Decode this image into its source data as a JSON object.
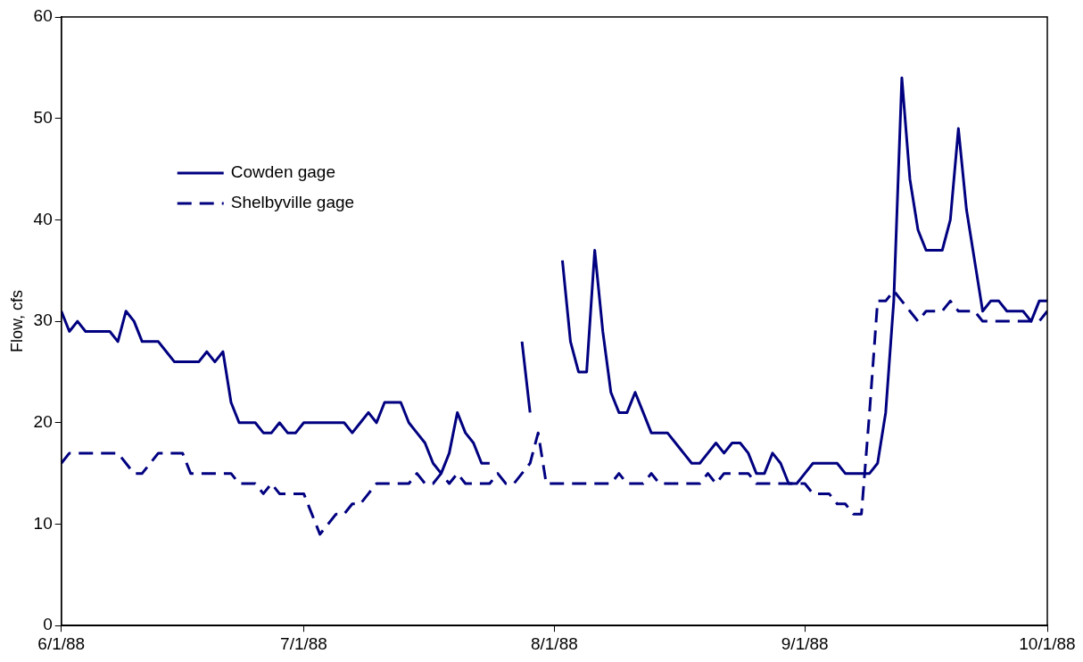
{
  "chart_data": {
    "type": "line",
    "ylabel": "Flow, cfs",
    "x": [
      "1988-06-01",
      "1988-06-02",
      "1988-06-03",
      "1988-06-04",
      "1988-06-05",
      "1988-06-06",
      "1988-06-07",
      "1988-06-08",
      "1988-06-09",
      "1988-06-10",
      "1988-06-11",
      "1988-06-12",
      "1988-06-13",
      "1988-06-14",
      "1988-06-15",
      "1988-06-16",
      "1988-06-17",
      "1988-06-18",
      "1988-06-19",
      "1988-06-20",
      "1988-06-21",
      "1988-06-22",
      "1988-06-23",
      "1988-06-24",
      "1988-06-25",
      "1988-06-26",
      "1988-06-27",
      "1988-06-28",
      "1988-06-29",
      "1988-06-30",
      "1988-07-01",
      "1988-07-02",
      "1988-07-03",
      "1988-07-04",
      "1988-07-05",
      "1988-07-06",
      "1988-07-07",
      "1988-07-08",
      "1988-07-09",
      "1988-07-10",
      "1988-07-11",
      "1988-07-12",
      "1988-07-13",
      "1988-07-14",
      "1988-07-15",
      "1988-07-16",
      "1988-07-17",
      "1988-07-18",
      "1988-07-19",
      "1988-07-20",
      "1988-07-21",
      "1988-07-22",
      "1988-07-23",
      "1988-07-24",
      "1988-07-25",
      "1988-07-26",
      "1988-07-27",
      "1988-07-28",
      "1988-07-29",
      "1988-07-30",
      "1988-07-31",
      "1988-08-01",
      "1988-08-02",
      "1988-08-03",
      "1988-08-04",
      "1988-08-05",
      "1988-08-06",
      "1988-08-07",
      "1988-08-08",
      "1988-08-09",
      "1988-08-10",
      "1988-08-11",
      "1988-08-12",
      "1988-08-13",
      "1988-08-14",
      "1988-08-15",
      "1988-08-16",
      "1988-08-17",
      "1988-08-18",
      "1988-08-19",
      "1988-08-20",
      "1988-08-21",
      "1988-08-22",
      "1988-08-23",
      "1988-08-24",
      "1988-08-25",
      "1988-08-26",
      "1988-08-27",
      "1988-08-28",
      "1988-08-29",
      "1988-08-30",
      "1988-08-31",
      "1988-09-01",
      "1988-09-02",
      "1988-09-03",
      "1988-09-04",
      "1988-09-05",
      "1988-09-06",
      "1988-09-07",
      "1988-09-08",
      "1988-09-09",
      "1988-09-10",
      "1988-09-11",
      "1988-09-12",
      "1988-09-13",
      "1988-09-14",
      "1988-09-15",
      "1988-09-16",
      "1988-09-17",
      "1988-09-18",
      "1988-09-19",
      "1988-09-20",
      "1988-09-21",
      "1988-09-22",
      "1988-09-23",
      "1988-09-24",
      "1988-09-25",
      "1988-09-26",
      "1988-09-27",
      "1988-09-28",
      "1988-09-29",
      "1988-09-30",
      "1988-10-01"
    ],
    "series": [
      {
        "name": "Cowden gage",
        "color": "#000080",
        "line_style": "solid",
        "values": [
          31,
          29,
          30,
          29,
          29,
          29,
          29,
          28,
          31,
          30,
          28,
          28,
          28,
          27,
          26,
          26,
          26,
          26,
          27,
          26,
          27,
          22,
          20,
          20,
          20,
          19,
          19,
          20,
          19,
          19,
          20,
          20,
          20,
          20,
          20,
          20,
          19,
          20,
          21,
          20,
          22,
          22,
          22,
          20,
          19,
          18,
          16,
          15,
          17,
          21,
          19,
          18,
          16,
          16,
          null,
          null,
          null,
          28,
          21,
          null,
          null,
          null,
          36,
          28,
          25,
          25,
          37,
          29,
          23,
          21,
          21,
          23,
          21,
          19,
          19,
          19,
          18,
          17,
          16,
          16,
          17,
          18,
          17,
          18,
          18,
          17,
          15,
          15,
          17,
          16,
          14,
          14,
          15,
          16,
          16,
          16,
          16,
          15,
          15,
          15,
          15,
          16,
          21,
          32,
          54,
          44,
          39,
          37,
          37,
          37,
          40,
          49,
          41,
          36,
          31,
          32,
          32,
          31,
          31,
          31,
          30,
          32,
          32
        ]
      },
      {
        "name": "Shelbyville gage",
        "color": "#000080",
        "line_style": "dashed",
        "values": [
          16,
          17,
          17,
          17,
          17,
          17,
          17,
          17,
          16,
          15,
          15,
          16,
          17,
          17,
          17,
          17,
          15,
          15,
          15,
          15,
          15,
          15,
          14,
          14,
          14,
          13,
          14,
          13,
          13,
          13,
          13,
          11,
          9,
          10,
          11,
          11,
          12,
          12,
          13,
          14,
          14,
          14,
          14,
          14,
          15,
          14,
          14,
          15,
          14,
          15,
          14,
          14,
          14,
          14,
          15,
          14,
          14,
          15,
          16,
          19,
          14,
          14,
          14,
          14,
          14,
          14,
          14,
          14,
          14,
          15,
          14,
          14,
          14,
          15,
          14,
          14,
          14,
          14,
          14,
          14,
          15,
          14,
          15,
          15,
          15,
          15,
          14,
          14,
          14,
          14,
          14,
          14,
          14,
          13,
          13,
          13,
          12,
          12,
          11,
          11,
          21,
          32,
          32,
          33,
          32,
          31,
          30,
          31,
          31,
          31,
          32,
          31,
          31,
          31,
          30,
          30,
          30,
          30,
          30,
          30,
          30,
          30,
          31
        ]
      }
    ],
    "xlim": [
      "1988-06-01",
      "1988-10-01"
    ],
    "xticks": [
      {
        "value": "1988-06-01",
        "label": "6/1/88"
      },
      {
        "value": "1988-07-01",
        "label": "7/1/88"
      },
      {
        "value": "1988-08-01",
        "label": "8/1/88"
      },
      {
        "value": "1988-09-01",
        "label": "9/1/88"
      },
      {
        "value": "1988-10-01",
        "label": "10/1/88"
      }
    ],
    "ylim": [
      0,
      60
    ],
    "yticks": [
      0,
      10,
      20,
      30,
      40,
      50,
      60
    ],
    "grid": false,
    "legend": "top left",
    "marker": "none"
  }
}
